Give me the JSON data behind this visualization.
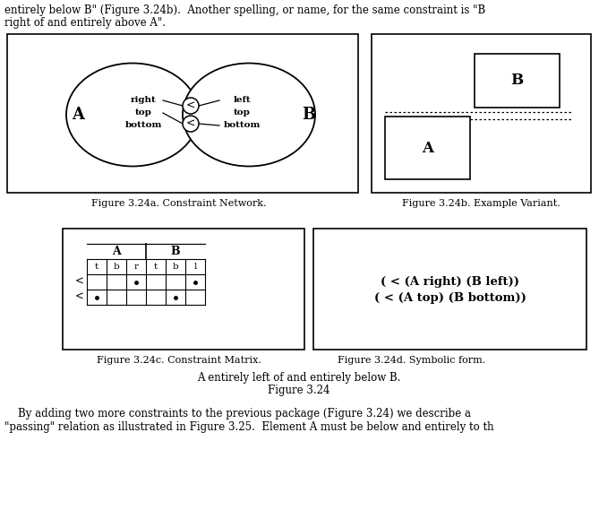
{
  "bg_color": "#ffffff",
  "fig_width": 6.69,
  "fig_height": 5.79,
  "top_text_lines": [
    "entirely below B\" (Figure 3.24b).  Another spelling, or name, for the same constraint is \"B",
    "right of and entirely above A\"."
  ],
  "bottom_text_lines": [
    "    By adding two more constraints to the previous package (Figure 3.24) we describe a",
    "\"passing\" relation as illustrated in Figure 3.25.  Element A must be below and entirely to th"
  ],
  "fig324a_caption": "Figure 3.24a. Constraint Network.",
  "fig324b_caption": "Figure 3.24b. Example Variant.",
  "fig324c_caption": "Figure 3.24c. Constraint Matrix.",
  "fig324d_caption": "Figure 3.24d. Symbolic form.",
  "center_caption1": "A entirely left of and entirely below B.",
  "center_caption2": "Figure 3.24",
  "symbolic_line1": "( < (A right) (B left))",
  "symbolic_line2": "( < (A top) (B bottom))"
}
